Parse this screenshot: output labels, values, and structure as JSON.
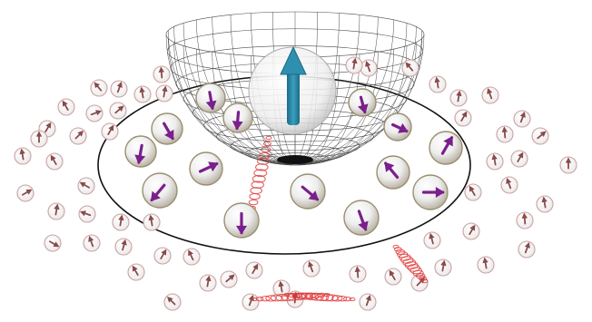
{
  "figure": {
    "background": "#ffffff",
    "colors": {
      "bowl_mesh": "#4a4a4a",
      "ring_outline": "#111111",
      "central_spin_arrow": "#2b7f9b",
      "inner_spin_arrow": "#7a1f8c",
      "outer_spin_arrow": "#8a4a4a",
      "outer_sphere_rim": "#c9a3a3",
      "wave_packet": "#e23a3a",
      "sphere_fill": "#f2f2f2"
    },
    "central_spin": {
      "icon": "up-arrow",
      "direction_deg": -90
    },
    "inner_spins": [
      {
        "direction_deg": 80
      },
      {
        "direction_deg": 95
      },
      {
        "direction_deg": 60
      },
      {
        "direction_deg": 100
      },
      {
        "direction_deg": -25
      },
      {
        "direction_deg": 130
      },
      {
        "direction_deg": 90
      },
      {
        "direction_deg": 40
      },
      {
        "direction_deg": 70
      },
      {
        "direction_deg": -130
      },
      {
        "direction_deg": 0
      },
      {
        "direction_deg": -60
      },
      {
        "direction_deg": 25
      },
      {
        "direction_deg": 75
      }
    ],
    "outer_spin_count": 60,
    "wave_packets": 4
  }
}
